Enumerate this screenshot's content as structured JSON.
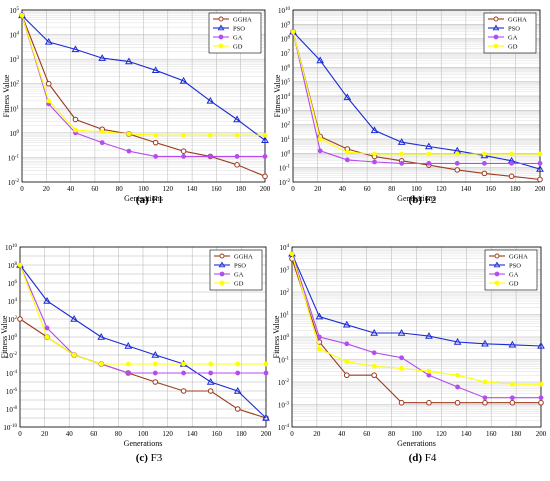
{
  "chart_data": [
    {
      "type": "line",
      "id": "F1",
      "caption_letter": "(a)",
      "caption_name": "F1",
      "xlabel": "Generations",
      "ylabel": "Fitness Value",
      "yscale": "log",
      "xlim": [
        0,
        200
      ],
      "ylim_exp": [
        -2,
        5
      ],
      "xticks": [
        0,
        20,
        40,
        60,
        80,
        100,
        120,
        140,
        160,
        180,
        200
      ],
      "grid": true,
      "legend_position": "top-right",
      "series": [
        {
          "name": "GGHA",
          "color": "#9c3a1a",
          "marker": "circle",
          "x": [
            0,
            22,
            44,
            66,
            88,
            110,
            133,
            155,
            177,
            200
          ],
          "y": [
            60000,
            100,
            3.5,
            1.4,
            0.9,
            0.4,
            0.18,
            0.11,
            0.05,
            0.017
          ]
        },
        {
          "name": "PSO",
          "color": "#1a2ad6",
          "marker": "triangle",
          "x": [
            0,
            22,
            44,
            66,
            88,
            110,
            133,
            155,
            177,
            200
          ],
          "y": [
            60000,
            5000,
            2500,
            1100,
            800,
            350,
            130,
            20,
            3.5,
            0.5
          ]
        },
        {
          "name": "GA",
          "color": "#b44cf0",
          "marker": "circle",
          "x": [
            0,
            22,
            44,
            66,
            88,
            110,
            133,
            155,
            177,
            200
          ],
          "y": [
            60000,
            15,
            1.0,
            0.4,
            0.18,
            0.11,
            0.11,
            0.11,
            0.11,
            0.11
          ]
        },
        {
          "name": "GD",
          "color": "#ffff00",
          "marker": "circle",
          "x": [
            0,
            22,
            44,
            66,
            88,
            110,
            133,
            155,
            177,
            200
          ],
          "y": [
            60000,
            20,
            1.3,
            1.1,
            0.9,
            0.8,
            0.8,
            0.8,
            0.8,
            0.8
          ]
        }
      ]
    },
    {
      "type": "line",
      "id": "F2",
      "caption_letter": "(b)",
      "caption_name": "F2",
      "xlabel": "Generations",
      "ylabel": "Fitness Value",
      "yscale": "log",
      "xlim": [
        0,
        200
      ],
      "ylim_exp": [
        -2,
        10
      ],
      "xticks": [
        0,
        20,
        40,
        60,
        80,
        100,
        120,
        140,
        160,
        180,
        200
      ],
      "grid": true,
      "legend_position": "top-right",
      "series": [
        {
          "name": "GGHA",
          "color": "#9c3a1a",
          "marker": "circle",
          "x": [
            0,
            22,
            44,
            66,
            88,
            110,
            133,
            155,
            177,
            200
          ],
          "y": [
            300000000.0,
            15,
            2.0,
            0.6,
            0.3,
            0.15,
            0.07,
            0.04,
            0.025,
            0.015
          ]
        },
        {
          "name": "PSO",
          "color": "#1a2ad6",
          "marker": "triangle",
          "x": [
            0,
            22,
            44,
            66,
            88,
            110,
            133,
            155,
            177,
            200
          ],
          "y": [
            300000000.0,
            3000000.0,
            8000,
            40,
            6,
            3,
            1.5,
            0.7,
            0.3,
            0.08
          ]
        },
        {
          "name": "GA",
          "color": "#b44cf0",
          "marker": "circle",
          "x": [
            0,
            22,
            44,
            66,
            88,
            110,
            133,
            155,
            177,
            200
          ],
          "y": [
            300000000.0,
            1.5,
            0.35,
            0.25,
            0.2,
            0.2,
            0.2,
            0.2,
            0.2,
            0.2
          ]
        },
        {
          "name": "GD",
          "color": "#ffff00",
          "marker": "circle",
          "x": [
            0,
            22,
            44,
            66,
            88,
            110,
            133,
            155,
            177,
            200
          ],
          "y": [
            300000000.0,
            10,
            1.2,
            0.9,
            0.9,
            0.9,
            0.9,
            0.9,
            0.9,
            0.9
          ]
        }
      ]
    },
    {
      "type": "line",
      "id": "F3",
      "caption_letter": "(c)",
      "caption_name": "F3",
      "xlabel": "Generations",
      "ylabel": "Fitness Value",
      "yscale": "log",
      "xlim": [
        0,
        200
      ],
      "ylim_exp": [
        -10,
        10
      ],
      "xticks": [
        0,
        20,
        40,
        60,
        80,
        100,
        120,
        140,
        160,
        180,
        200
      ],
      "grid": true,
      "legend_position": "top-right",
      "series": [
        {
          "name": "GGHA",
          "color": "#9c3a1a",
          "marker": "circle",
          "x": [
            0,
            22,
            44,
            66,
            88,
            110,
            133,
            155,
            177,
            200
          ],
          "y": [
            100.0,
            1.0,
            0.01,
            0.001,
            0.0001,
            1e-05,
            1e-06,
            1e-06,
            1e-08,
            1e-09
          ]
        },
        {
          "name": "PSO",
          "color": "#1a2ad6",
          "marker": "triangle",
          "x": [
            0,
            22,
            44,
            66,
            88,
            110,
            133,
            155,
            177,
            200
          ],
          "y": [
            100000000.0,
            10000.0,
            100.0,
            1.0,
            0.1,
            0.01,
            0.001,
            1e-05,
            1e-06,
            1e-09
          ]
        },
        {
          "name": "GA",
          "color": "#b44cf0",
          "marker": "circle",
          "x": [
            0,
            22,
            44,
            66,
            88,
            110,
            133,
            155,
            177,
            200
          ],
          "y": [
            100000000.0,
            10.0,
            0.01,
            0.001,
            0.0001,
            0.0001,
            0.0001,
            0.0001,
            0.0001,
            0.0001
          ]
        },
        {
          "name": "GD",
          "color": "#ffff00",
          "marker": "circle",
          "x": [
            0,
            22,
            44,
            66,
            88,
            110,
            133,
            155,
            177,
            200
          ],
          "y": [
            100000000.0,
            1.0,
            0.01,
            0.001,
            0.001,
            0.001,
            0.001,
            0.001,
            0.001,
            0.001
          ]
        }
      ]
    },
    {
      "type": "line",
      "id": "F4",
      "caption_letter": "(d)",
      "caption_name": "F4",
      "xlabel": "Generations",
      "ylabel": "Fitness Value",
      "yscale": "log",
      "xlim": [
        0,
        200
      ],
      "ylim_exp": [
        -4,
        4
      ],
      "xticks": [
        0,
        20,
        40,
        60,
        80,
        100,
        120,
        140,
        160,
        180,
        200
      ],
      "grid": true,
      "legend_position": "top-right",
      "series": [
        {
          "name": "GGHA",
          "color": "#9c3a1a",
          "marker": "circle",
          "x": [
            0,
            22,
            44,
            66,
            88,
            110,
            133,
            155,
            177,
            200
          ],
          "y": [
            3000,
            0.6,
            0.02,
            0.02,
            0.0012,
            0.0012,
            0.0012,
            0.0012,
            0.0012,
            0.0012
          ]
        },
        {
          "name": "PSO",
          "color": "#1a2ad6",
          "marker": "triangle",
          "x": [
            0,
            22,
            44,
            66,
            88,
            110,
            133,
            155,
            177,
            200
          ],
          "y": [
            5000,
            8,
            3.5,
            1.5,
            1.5,
            1.1,
            0.6,
            0.5,
            0.45,
            0.4
          ]
        },
        {
          "name": "GA",
          "color": "#b44cf0",
          "marker": "circle",
          "x": [
            0,
            22,
            44,
            66,
            88,
            110,
            133,
            155,
            177,
            200
          ],
          "y": [
            5000,
            1.0,
            0.5,
            0.2,
            0.12,
            0.02,
            0.006,
            0.002,
            0.002,
            0.002
          ]
        },
        {
          "name": "GD",
          "color": "#ffff00",
          "marker": "circle",
          "x": [
            0,
            22,
            44,
            66,
            88,
            110,
            133,
            155,
            177,
            200
          ],
          "y": [
            5000,
            0.3,
            0.08,
            0.05,
            0.04,
            0.03,
            0.02,
            0.01,
            0.008,
            0.008
          ]
        }
      ]
    }
  ]
}
